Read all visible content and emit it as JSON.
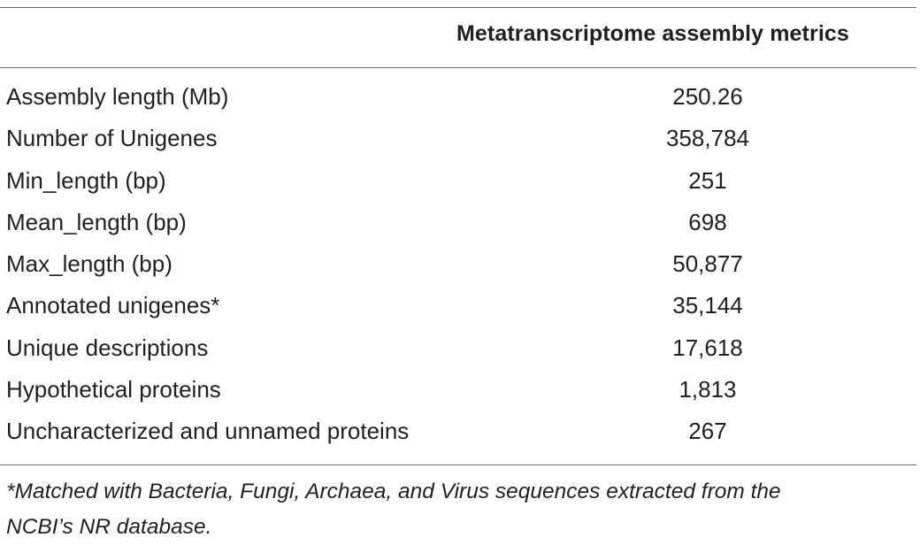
{
  "table": {
    "column_header": "Metatranscriptome assembly metrics",
    "rows": [
      {
        "label": "Assembly length (Mb)",
        "value": "250.26"
      },
      {
        "label": "Number of Unigenes",
        "value": "358,784"
      },
      {
        "label": "Min_length (bp)",
        "value": "251"
      },
      {
        "label": "Mean_length (bp)",
        "value": "698"
      },
      {
        "label": "Max_length (bp)",
        "value": "50,877"
      },
      {
        "label": "Annotated unigenes*",
        "value": "35,144"
      },
      {
        "label": "Unique descriptions",
        "value": "17,618"
      },
      {
        "label": "Hypothetical proteins",
        "value": "1,813"
      },
      {
        "label": "Uncharacterized and unnamed proteins",
        "value": "267"
      }
    ],
    "footnote_line1": "*Matched with Bacteria, Fungi, Archaea, and Virus sequences extracted from the",
    "footnote_line2": "NCBI’s NR database."
  }
}
